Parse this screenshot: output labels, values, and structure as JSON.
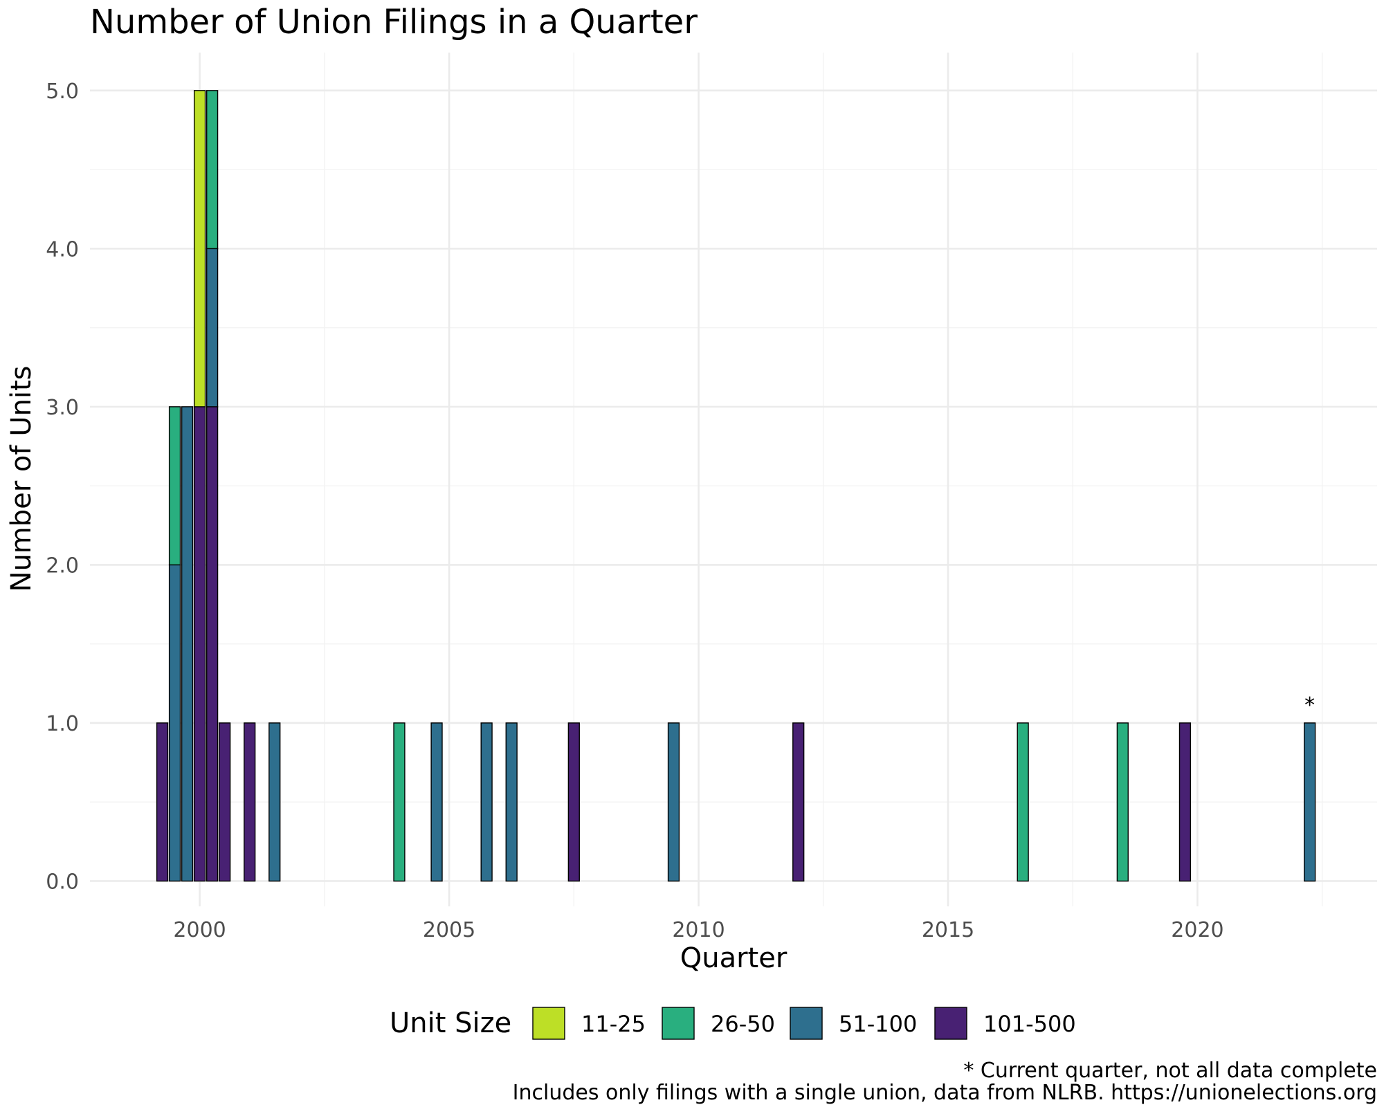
{
  "chart_data": {
    "type": "bar",
    "stacked": true,
    "title": "Number of Union Filings in a Quarter",
    "xlabel": "Quarter",
    "ylabel": "Number of Units",
    "xlim": [
      1997.8,
      2023.6
    ],
    "ylim": [
      -0.16,
      5.24
    ],
    "x_ticks": [
      2000,
      2005,
      2010,
      2015,
      2020
    ],
    "y_ticks": [
      0,
      1,
      2,
      3,
      4,
      5
    ],
    "y_tick_labels": [
      "0.0",
      "1.0",
      "2.0",
      "3.0",
      "4.0",
      "5.0"
    ],
    "grid": true,
    "legend": {
      "title": "Unit Size",
      "position": "bottom",
      "entries": [
        "11-25",
        "26-50",
        "51-100",
        "101-500"
      ]
    },
    "colors": {
      "11-25": "#bddf26",
      "26-50": "#29af7f",
      "51-100": "#2e6f8e",
      "101-500": "#482173"
    },
    "bar_width_years": 0.22,
    "series_order": [
      "11-25",
      "26-50",
      "51-100",
      "101-500"
    ],
    "x": [
      1999.25,
      1999.5,
      1999.75,
      2000.0,
      2000.25,
      2000.5,
      2001.0,
      2001.5,
      2004.0,
      2004.75,
      2005.75,
      2006.25,
      2007.5,
      2009.5,
      2012.0,
      2016.5,
      2018.5,
      2019.75,
      2022.25
    ],
    "series": [
      {
        "name": "11-25",
        "values": [
          0,
          0,
          0,
          2,
          0,
          0,
          0,
          0,
          0,
          0,
          0,
          0,
          0,
          0,
          0,
          0,
          0,
          0,
          0
        ]
      },
      {
        "name": "26-50",
        "values": [
          0,
          1,
          0,
          0,
          1,
          0,
          0,
          0,
          1,
          0,
          0,
          0,
          0,
          0,
          0,
          1,
          1,
          0,
          0
        ]
      },
      {
        "name": "51-100",
        "values": [
          0,
          2,
          3,
          0,
          1,
          0,
          0,
          1,
          0,
          1,
          1,
          1,
          0,
          1,
          0,
          0,
          0,
          0,
          1
        ]
      },
      {
        "name": "101-500",
        "values": [
          1,
          0,
          0,
          3,
          3,
          1,
          1,
          0,
          0,
          0,
          0,
          0,
          1,
          0,
          1,
          0,
          0,
          1,
          0
        ]
      }
    ],
    "annotations": [
      {
        "x": 2022.25,
        "y": 1,
        "text": "*"
      }
    ],
    "caption_lines": [
      "* Current quarter, not all data complete",
      "Includes only filings with a single union, data from NLRB. https://unionelections.org"
    ]
  }
}
